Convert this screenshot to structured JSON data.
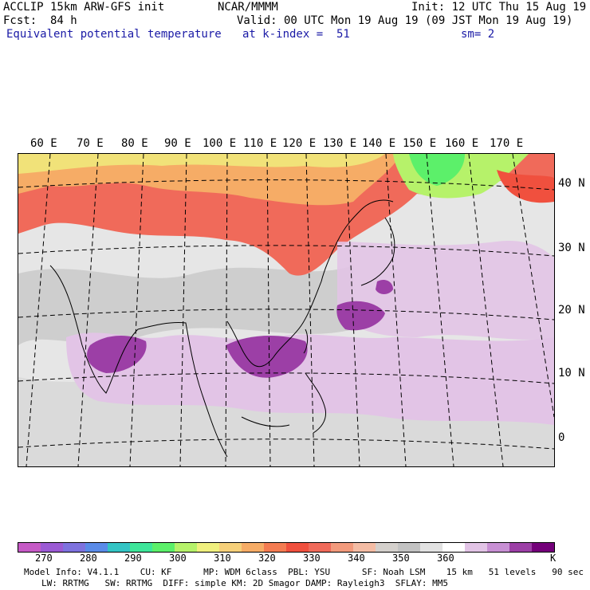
{
  "header": {
    "model": "ACCLIP 15km ARW-GFS init",
    "forecast": "Fcst:  84 h",
    "field": "Equivalent potential temperature",
    "org": "NCAR/MMMM",
    "valid": "Valid: 00 UTC Mon 19 Aug 19 (09 JST Mon 19 Aug 19)",
    "level": "at k-index =  51",
    "init": "Init: 12 UTC Thu 15 Aug 19",
    "smooth": "sm= 2"
  },
  "map": {
    "lon_labels": [
      "60 E",
      "70 E",
      "80 E",
      "90 E",
      "100 E",
      "110 E",
      "120 E",
      "130 E",
      "140 E",
      "150 E",
      "160 E",
      "170 E"
    ],
    "lat_labels": [
      "40 N",
      "30 N",
      "20 N",
      "10 N",
      "0"
    ]
  },
  "colorbar": {
    "colors": [
      "#c65ac6",
      "#9b5ad4",
      "#7e72de",
      "#5a8be8",
      "#33c4c4",
      "#3ee69a",
      "#5cf06a",
      "#b6f26a",
      "#f0f07e",
      "#f6d07a",
      "#f6ac66",
      "#f47c52",
      "#f0503e",
      "#f06a5a",
      "#f29a7c",
      "#f4bca4",
      "#d4d0cc",
      "#c2c2c2",
      "#e2e2e2",
      "#ffffff",
      "#e2c4e6",
      "#c890d4",
      "#9c3fa6",
      "#74007a"
    ],
    "labels": [
      "270",
      "280",
      "290",
      "300",
      "310",
      "320",
      "330",
      "340",
      "350",
      "360",
      "K"
    ]
  },
  "footer": {
    "line1": "Model Info: V4.1.1    CU: KF      MP: WDM 6class  PBL: YSU      SF: Noah LSM    15 km   51 levels   90 sec",
    "line2": "LW: RRTMG   SW: RRTMG  DIFF: simple KM: 2D Smagor DAMP: Rayleigh3  SFLAY: MM5"
  }
}
